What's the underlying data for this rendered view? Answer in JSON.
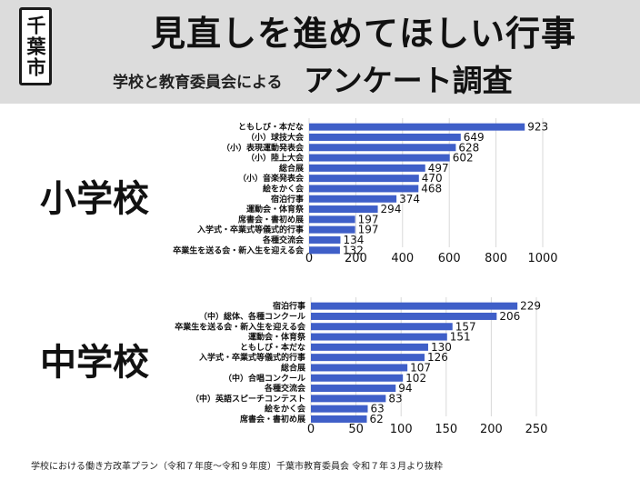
{
  "header": {
    "city": "千葉市",
    "title": "見直しを進めてほしい行事",
    "subtitle_small": "学校と教育委員会による",
    "subtitle_large": "アンケート調査"
  },
  "footer": "学校における働き方改革プラン（令和７年度～令和９年度）千葉市教育委員会 令和７年３月より抜粋",
  "colors": {
    "bar": "#3f5fc8",
    "header_bg": "#dcdcdc",
    "grid": "#d9d9d9"
  },
  "chart_data": [
    {
      "type": "bar",
      "orientation": "horizontal",
      "label": "小学校",
      "categories": [
        "ともしび・本だな",
        "（小）球技大会",
        "（小）表現運動発表会",
        "（小）陸上大会",
        "総合展",
        "（小）音楽発表会",
        "絵をかく会",
        "宿泊行事",
        "運動会・体育祭",
        "席書会・書初め展",
        "入学式・卒業式等儀式的行事",
        "各種交流会",
        "卒業生を送る会・新入生を迎える会"
      ],
      "values": [
        923,
        649,
        628,
        602,
        497,
        470,
        468,
        374,
        294,
        197,
        197,
        134,
        132
      ],
      "xlim": [
        0,
        1000
      ],
      "xticks": [
        0,
        200,
        400,
        600,
        800,
        1000
      ],
      "grid": true
    },
    {
      "type": "bar",
      "orientation": "horizontal",
      "label": "中学校",
      "categories": [
        "宿泊行事",
        "（中）総体、各種コンクール",
        "卒業生を送る会・新入生を迎える会",
        "運動会・体育祭",
        "ともしび・本だな",
        "入学式・卒業式等儀式的行事",
        "総合展",
        "（中）合唱コンクール",
        "各種交流会",
        "（中）英語スピーチコンテスト",
        "絵をかく会",
        "席書会・書初め展"
      ],
      "values": [
        229,
        206,
        157,
        151,
        130,
        126,
        107,
        102,
        94,
        83,
        63,
        62
      ],
      "xlim": [
        0,
        250
      ],
      "xticks": [
        0,
        50,
        100,
        150,
        200,
        250
      ],
      "grid": true
    }
  ]
}
